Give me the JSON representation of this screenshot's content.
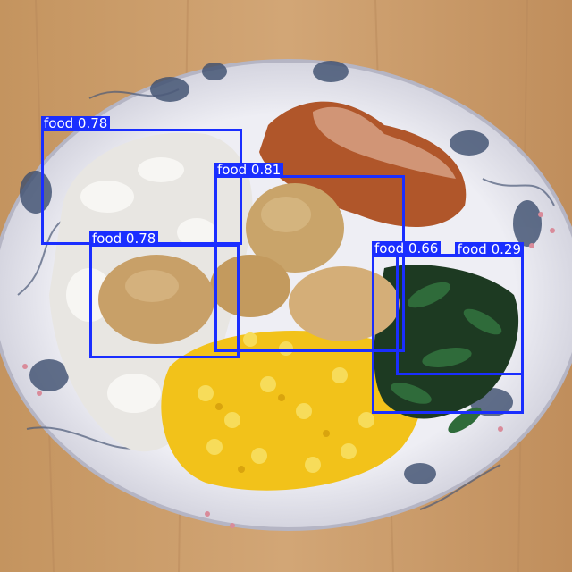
{
  "image": {
    "subject": "food-plate-photo",
    "colors": {
      "table": "#c99c6c",
      "plate": "#e6e6ee",
      "rice": "#e8e6e2",
      "corn": "#f2c21a",
      "chicken": "#c9a46a",
      "greens": "#1d3a22",
      "box": "#1a2eff"
    }
  },
  "detections": [
    {
      "label": "food 0.78"
    },
    {
      "label": "food 0.81"
    },
    {
      "label": "food 0.78"
    },
    {
      "label": "food 0.66"
    },
    {
      "label": "food 0.29"
    }
  ]
}
